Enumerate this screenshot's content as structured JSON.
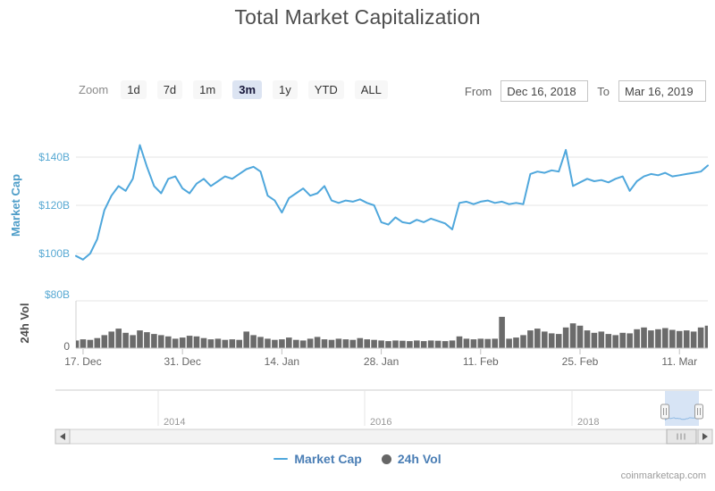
{
  "title": "Total Market Capitalization",
  "toolbar": {
    "zoom_label": "Zoom",
    "buttons": [
      "1d",
      "7d",
      "1m",
      "3m",
      "1y",
      "YTD",
      "ALL"
    ],
    "selected": "3m",
    "from_label": "From",
    "from_value": "Dec 16, 2018",
    "to_label": "To",
    "to_value": "Mar 16, 2019"
  },
  "chart_data": [
    {
      "type": "line",
      "name": "Market Cap",
      "color": "#4fa7dc",
      "unit": "$B",
      "ylabel": "Market Cap",
      "ylim": [
        95,
        150
      ],
      "grid": true,
      "yticks": [
        {
          "label": "$140B",
          "value": 140
        },
        {
          "label": "$120B",
          "value": 120
        },
        {
          "label": "$100B",
          "value": 100
        }
      ],
      "x_start": "Dec 16, 2018",
      "x_end": "Mar 16, 2019",
      "xticks": [
        {
          "label": "17. Dec",
          "day": 1
        },
        {
          "label": "31. Dec",
          "day": 15
        },
        {
          "label": "14. Jan",
          "day": 29
        },
        {
          "label": "28. Jan",
          "day": 43
        },
        {
          "label": "11. Feb",
          "day": 57
        },
        {
          "label": "25. Feb",
          "day": 71
        },
        {
          "label": "11. Mar",
          "day": 85
        }
      ],
      "values": [
        99,
        97.5,
        100,
        106,
        118,
        124,
        128,
        126,
        131,
        145,
        136,
        128,
        125,
        131,
        132,
        127,
        125,
        129,
        131,
        128,
        130,
        132,
        131,
        133,
        135,
        136,
        134,
        124,
        122,
        117,
        123,
        125,
        127,
        124,
        125,
        128,
        122,
        121,
        122,
        121.5,
        122.5,
        121,
        120,
        113,
        112,
        115,
        113,
        112.5,
        114,
        113,
        114.5,
        113.5,
        112.5,
        110,
        121,
        121.5,
        120.5,
        121.5,
        122,
        121,
        121.5,
        120.5,
        121,
        120.5,
        133,
        134,
        133.5,
        134.5,
        134,
        143,
        128,
        129.5,
        131,
        130,
        130.5,
        129.5,
        131,
        132,
        126,
        130,
        132,
        133,
        132.5,
        133.5,
        132,
        132.5,
        133,
        133.5,
        134,
        136.5
      ]
    },
    {
      "type": "bar",
      "name": "24h Vol",
      "color": "#6b6b6b",
      "unit": "$B",
      "ylabel": "24h Vol",
      "ylim": [
        0,
        80
      ],
      "yticks": [
        {
          "label": "$80B",
          "value": 80
        },
        {
          "label": "0",
          "value": 0
        }
      ],
      "values": [
        13,
        15,
        14,
        17,
        22,
        28,
        33,
        26,
        22,
        30,
        27,
        24,
        22,
        20,
        16,
        18,
        21,
        20,
        17,
        15,
        16,
        14,
        15,
        14,
        28,
        22,
        19,
        16,
        14,
        15,
        18,
        14,
        13,
        16,
        19,
        15,
        14,
        16,
        15,
        14,
        17,
        15,
        14,
        13,
        12,
        13,
        12.5,
        12,
        13,
        12,
        13,
        12.5,
        12,
        13,
        20,
        16,
        15,
        16,
        15.5,
        16,
        53,
        16,
        18,
        22,
        30,
        33,
        28,
        25,
        24,
        35,
        42,
        38,
        30,
        26,
        28,
        24,
        22,
        26,
        25,
        32,
        35,
        30,
        32,
        34,
        31,
        29,
        30,
        28,
        35,
        38
      ]
    }
  ],
  "navigator": {
    "year_labels": [
      "2014",
      "2016",
      "2018"
    ]
  },
  "legend": [
    {
      "label": "Market Cap",
      "marker": "line",
      "color": "#4fa7dc"
    },
    {
      "label": "24h Vol",
      "marker": "circle",
      "color": "#666666"
    }
  ],
  "attribution": "coinmarketcap.com",
  "colors": {
    "line_series": "#4fa7dc",
    "volume_series": "#6b6b6b",
    "axis_label_blue": "#58a9d3",
    "axis_title_blue": "#4e9dc8",
    "axis_label_gray": "#666666",
    "selected_button_bg": "#dce4f2",
    "grid": "#e6e6e6",
    "navigator_mask": "#d7e4f5"
  }
}
